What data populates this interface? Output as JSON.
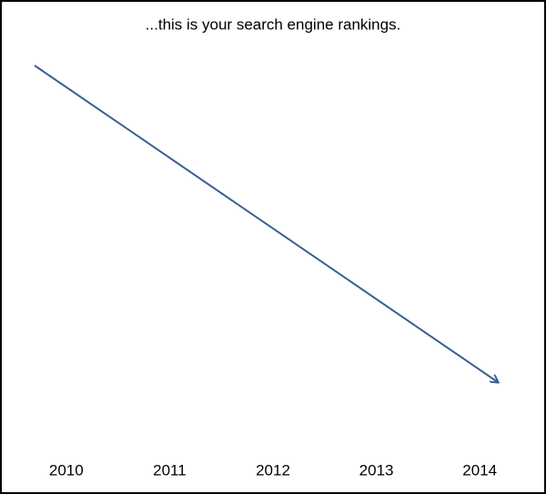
{
  "title": "...this is your search engine rankings.",
  "labels": [
    "2010",
    "2011",
    "2012",
    "2013",
    "2014"
  ]
}
